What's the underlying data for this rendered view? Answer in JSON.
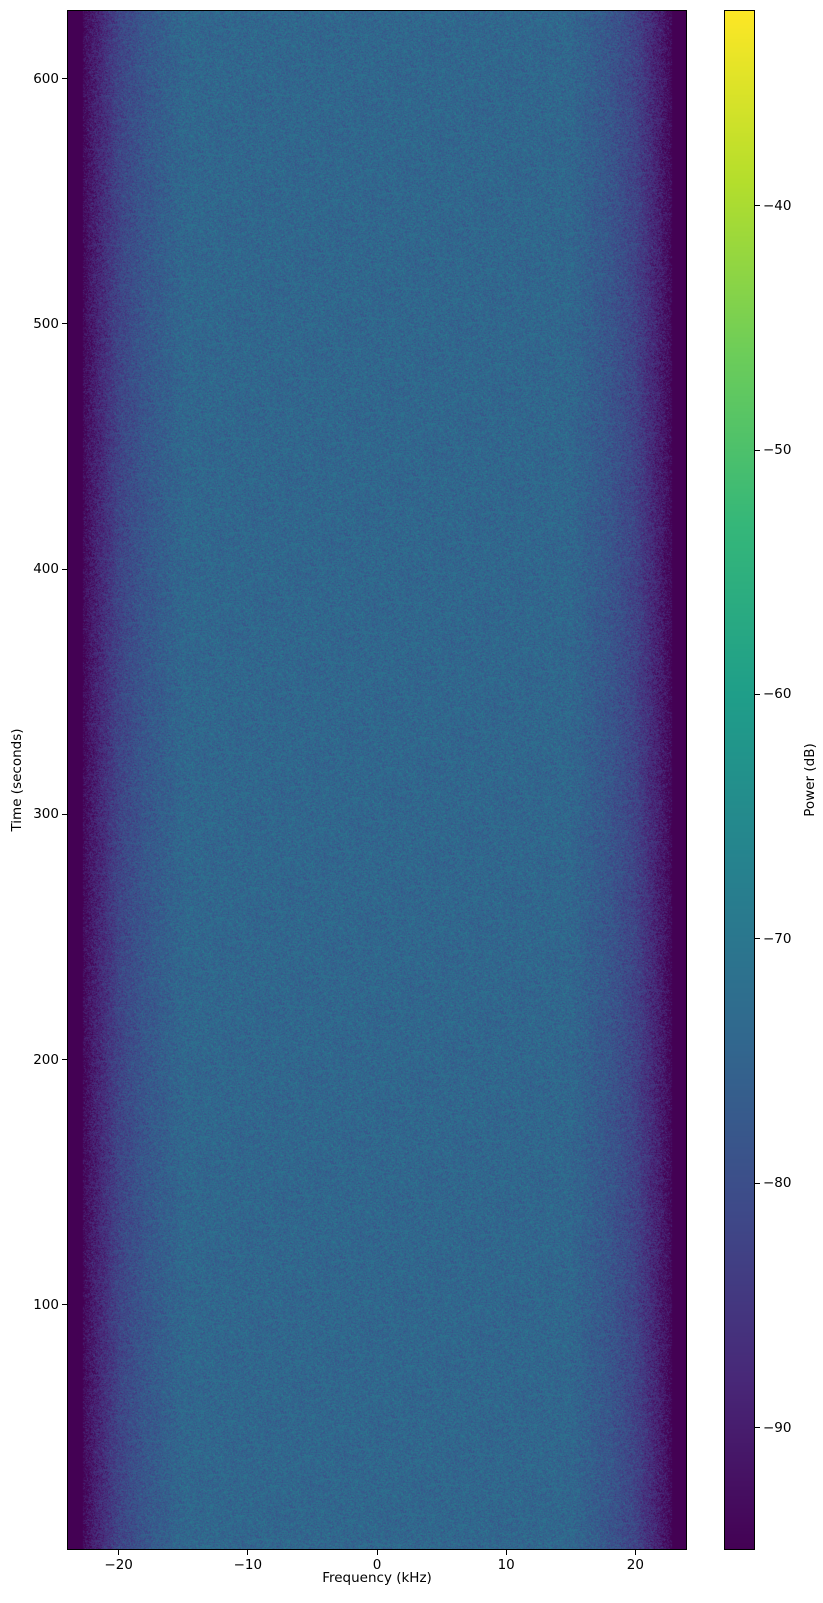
{
  "chart_data": {
    "type": "heatmap",
    "title": "",
    "xlabel": "Frequency (kHz)",
    "ylabel": "Time (seconds)",
    "xlim": [
      -24,
      24
    ],
    "ylim": [
      0,
      628
    ],
    "xticks": [
      -20,
      -10,
      0,
      10,
      20
    ],
    "xtick_labels": [
      "−20",
      "−10",
      "0",
      "10",
      "20"
    ],
    "yticks": [
      100,
      200,
      300,
      400,
      500,
      600
    ],
    "ytick_labels": [
      "100",
      "200",
      "300",
      "400",
      "500",
      "600"
    ],
    "colorbar": {
      "label": "Power (dB)",
      "colormap": "viridis",
      "range": [
        -95,
        -32
      ],
      "ticks": [
        -40,
        -50,
        -60,
        -70,
        -80,
        -90
      ],
      "tick_labels": [
        "−40",
        "−50",
        "−60",
        "−70",
        "−80",
        "−90"
      ]
    },
    "power_profile": {
      "frequency_khz": [
        -24,
        -23,
        -22,
        -21,
        -20,
        -18,
        -15,
        0,
        15,
        18,
        20,
        21,
        22,
        23,
        24
      ],
      "mean_power_db": [
        -95,
        -95,
        -90,
        -86,
        -82,
        -78,
        -74,
        -74,
        -74,
        -78,
        -82,
        -86,
        -90,
        -95,
        -95
      ]
    },
    "grid": false
  }
}
